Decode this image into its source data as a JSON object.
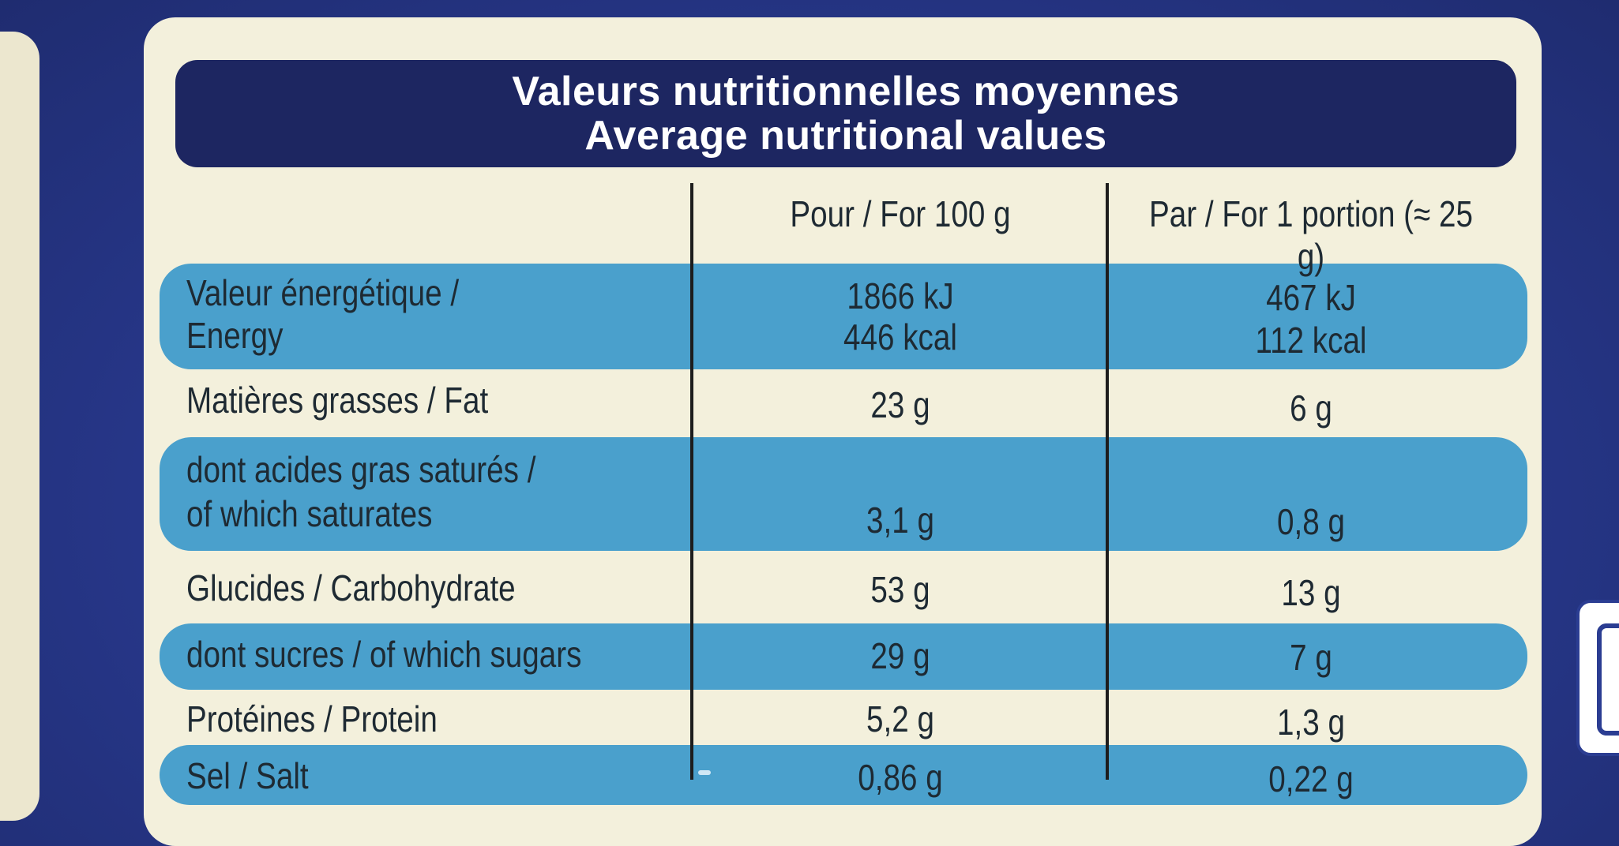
{
  "title": {
    "line1": "Valeurs nutritionnelles moyennes",
    "line2": "Average nutritional values"
  },
  "columns": [
    "Pour / For 100 g",
    "Par / For 1 portion (≈ 25 g)"
  ],
  "rows": [
    {
      "label_1": "Valeur énergétique /",
      "label_2": "Energy",
      "per100_1": "1866 kJ",
      "per100_2": "446 kcal",
      "portion_1": "467 kJ",
      "portion_2": "112 kcal"
    },
    {
      "label_1": "Matières grasses / Fat",
      "per100": "23 g",
      "portion": "6 g"
    },
    {
      "label_1": "dont acides gras saturés /",
      "label_2": "of which saturates",
      "per100": "3,1 g",
      "portion": "0,8 g"
    },
    {
      "label_1": "Glucides / Carbohydrate",
      "per100": "53 g",
      "portion": "13 g"
    },
    {
      "label_1": "dont sucres / of which sugars",
      "per100": "29 g",
      "portion": "7 g"
    },
    {
      "label_1": "Protéines / Protein",
      "per100": "5,2 g",
      "portion": "1,3 g"
    },
    {
      "label_1": "Sel / Salt",
      "per100": "0,86 g",
      "portion": "0,22 g"
    }
  ],
  "colors": {
    "background": "#2a3a8c",
    "card": "#f3f0dc",
    "title_bar": "#1d2661",
    "band": "#4aa0cc",
    "text": "#1e2a33"
  }
}
